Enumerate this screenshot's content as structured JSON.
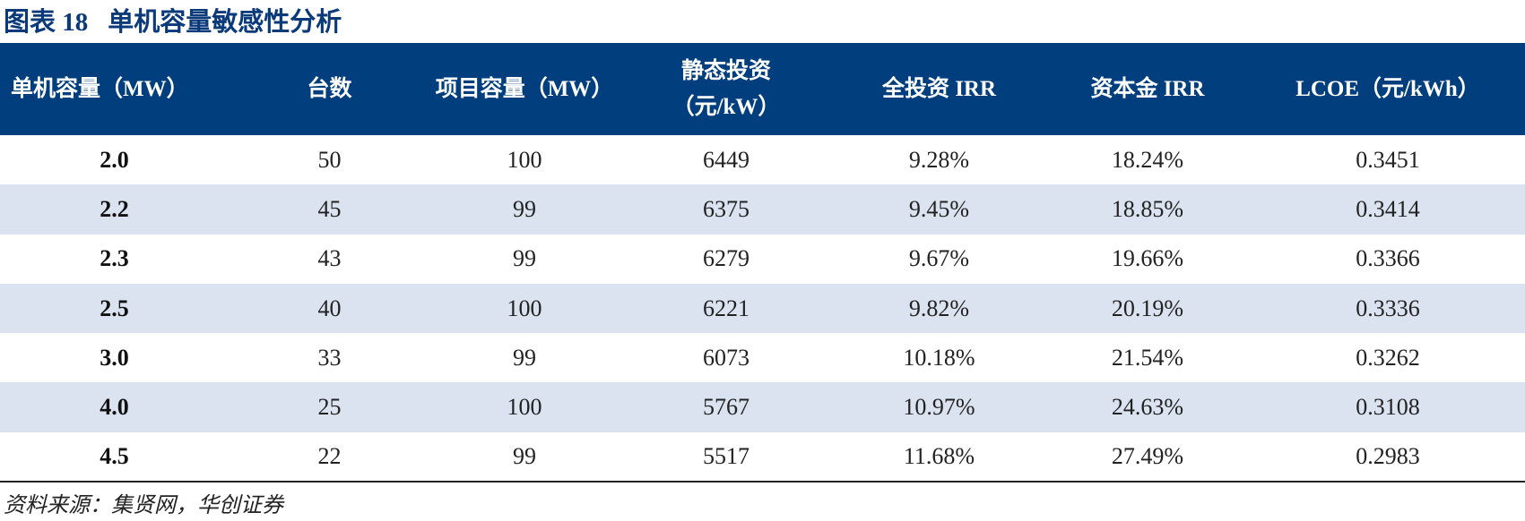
{
  "caption": {
    "label": "图表 18",
    "title": "单机容量敏感性分析"
  },
  "table": {
    "headers": [
      "单机容量（MW）",
      "台数",
      "项目容量（MW）",
      "静态投资（元/kW）",
      "全投资 IRR",
      "资本金 IRR",
      "LCOE（元/kWh）"
    ],
    "rows": [
      [
        "2.0",
        "50",
        "100",
        "6449",
        "9.28%",
        "18.24%",
        "0.3451"
      ],
      [
        "2.2",
        "45",
        "99",
        "6375",
        "9.45%",
        "18.85%",
        "0.3414"
      ],
      [
        "2.3",
        "43",
        "99",
        "6279",
        "9.67%",
        "19.66%",
        "0.3366"
      ],
      [
        "2.5",
        "40",
        "100",
        "6221",
        "9.82%",
        "20.19%",
        "0.3336"
      ],
      [
        "3.0",
        "33",
        "99",
        "6073",
        "10.18%",
        "21.54%",
        "0.3262"
      ],
      [
        "4.0",
        "25",
        "100",
        "5767",
        "10.97%",
        "24.63%",
        "0.3108"
      ],
      [
        "4.5",
        "22",
        "99",
        "5517",
        "11.68%",
        "27.49%",
        "0.2983"
      ]
    ]
  },
  "source": "资料来源：集贤网，华创证券",
  "colors": {
    "header_bg": "#003e7e",
    "row_shade": "#dbe3f0",
    "caption_color": "#0b3a7a"
  }
}
